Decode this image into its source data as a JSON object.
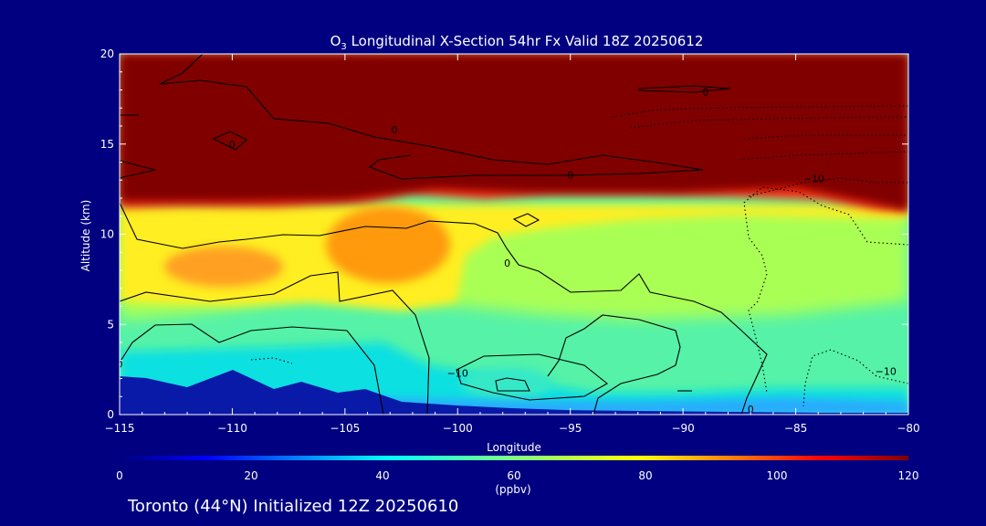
{
  "chart_data": {
    "type": "heatmap",
    "title_prefix": "O",
    "title_sub": "3",
    "title_rest": " Longitudinal X-Section 54hr  Fx Valid 18Z 20250612",
    "xlabel": "Longitude",
    "ylabel": "Altitude (km)",
    "xlim": [
      -115,
      -80
    ],
    "ylim": [
      0,
      20
    ],
    "x_ticks": [
      -115,
      -110,
      -105,
      -100,
      -95,
      -90,
      -85,
      -80
    ],
    "x_tick_labels": [
      "−115",
      "−110",
      "−105",
      "−100",
      "−95",
      "−90",
      "−85",
      "−80"
    ],
    "y_ticks": [
      0,
      5,
      10,
      15,
      20
    ],
    "y_tick_labels": [
      "0",
      "5",
      "10",
      "15",
      "20"
    ],
    "colorbar": {
      "range": [
        0,
        120
      ],
      "ticks": [
        0,
        20,
        40,
        60,
        80,
        100,
        120
      ],
      "tick_labels": [
        "0",
        "20",
        "40",
        "60",
        "80",
        "100",
        "120"
      ],
      "unit": "(ppbv)",
      "colormap": "jet"
    },
    "tropopause_km": [
      {
        "lon": -115,
        "alt": 11.8
      },
      {
        "lon": -110,
        "alt": 11.8
      },
      {
        "lon": -105,
        "alt": 11.9
      },
      {
        "lon": -101,
        "alt": 12.5
      },
      {
        "lon": -97,
        "alt": 12.3
      },
      {
        "lon": -90,
        "alt": 12.3
      },
      {
        "lon": -85,
        "alt": 12.6
      },
      {
        "lon": -80,
        "alt": 11.3
      }
    ],
    "features": [
      {
        "lon": -104,
        "alt": 9.2,
        "value": 88
      },
      {
        "lon": -111,
        "alt": 8.3,
        "value": 84
      },
      {
        "lon": -100,
        "alt": 3.0,
        "value": 38
      },
      {
        "lon": -85,
        "alt": 1.5,
        "value": 42
      }
    ],
    "contour_labels": [
      {
        "text": "0",
        "lon": -89.0,
        "alt": 17.9
      },
      {
        "text": "0",
        "lon": -102.8,
        "alt": 15.8
      },
      {
        "text": "0",
        "lon": -110.0,
        "alt": 15.0
      },
      {
        "text": "0",
        "lon": -95.0,
        "alt": 13.3
      },
      {
        "text": "−10",
        "lon": -84.2,
        "alt": 13.1
      },
      {
        "text": "0",
        "lon": -97.8,
        "alt": 8.4
      },
      {
        "text": "0",
        "lon": -115.0,
        "alt": 2.8
      },
      {
        "text": "−10",
        "lon": -100.0,
        "alt": 2.3
      },
      {
        "text": "−10",
        "lon": -81.0,
        "alt": 2.4
      },
      {
        "text": "0",
        "lon": -87.0,
        "alt": 0.3
      }
    ]
  },
  "footer": {
    "location_text": "Toronto (44°N) Initialized 12Z 20250610"
  },
  "colors": {
    "background": "#000080",
    "text": "#ffffff",
    "contour": "#000000"
  }
}
